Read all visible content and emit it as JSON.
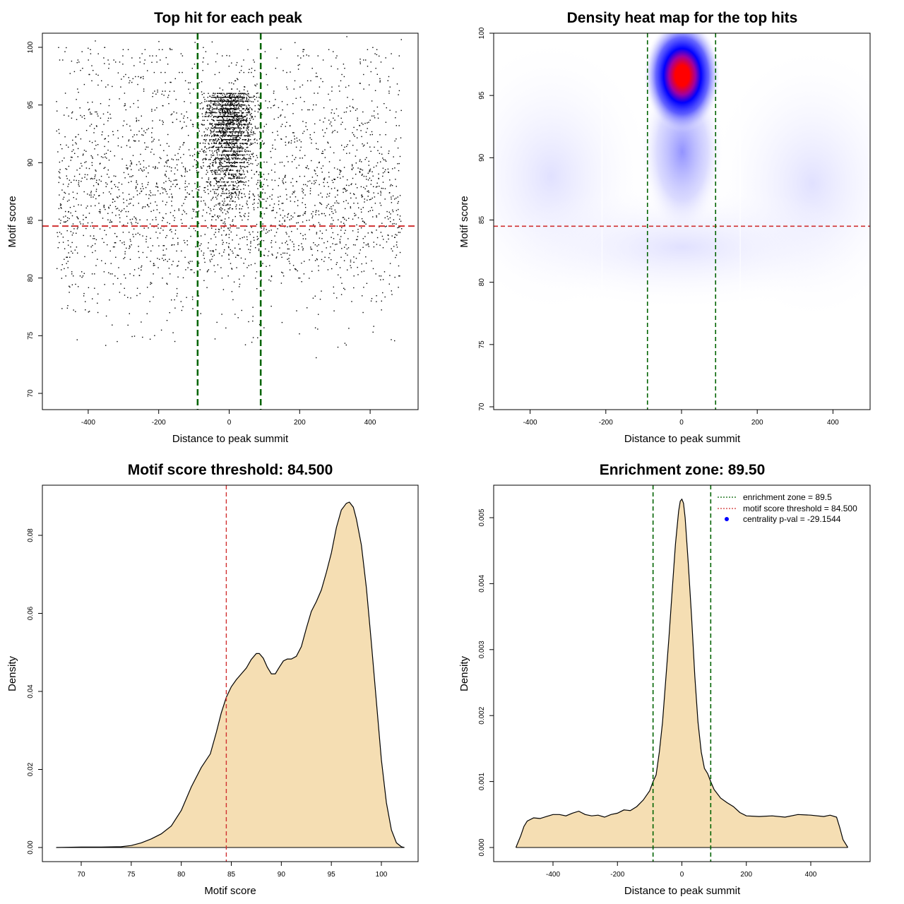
{
  "chart_data": [
    {
      "type": "scatter",
      "title": "Top hit for each peak",
      "xlabel": "Distance to peak summit",
      "ylabel": "Motif score",
      "xlim": [
        -500,
        500
      ],
      "ylim": [
        69,
        101
      ],
      "xticks": [
        "-400",
        "-200",
        "0",
        "200",
        "400"
      ],
      "yticks": [
        "70",
        "75",
        "80",
        "85",
        "90",
        "95",
        "100"
      ],
      "points_summary": "about 6000 points; dense near distance 0 and motif scores 88-100; sparse background from -500 to 500",
      "vlines": [
        -89.5,
        89.5
      ],
      "hline": 84.5,
      "colors": {
        "points": "#000000",
        "vlines": "#006400",
        "hline": "#d03030"
      }
    },
    {
      "type": "heatmap",
      "title": "Density heat map for the top hits",
      "xlabel": "Distance to peak summit",
      "ylabel": "Motif score",
      "xlim": [
        -500,
        500
      ],
      "ylim": [
        70,
        100
      ],
      "xticks": [
        "-400",
        "-200",
        "0",
        "200",
        "400"
      ],
      "yticks": [
        "70",
        "75",
        "80",
        "85",
        "90",
        "95",
        "100"
      ],
      "peak": {
        "x": 0,
        "y": 97
      },
      "vlines": [
        -90,
        90
      ],
      "hline": 84.5,
      "colors": {
        "low": "#ffffff",
        "mid": "#0000ff",
        "high": "#ff0000",
        "vlines": "#006400",
        "hline": "#d03030"
      }
    },
    {
      "type": "area",
      "title": "Motif score threshold: 84.500",
      "xlabel": "Motif score",
      "ylabel": "Density",
      "xlim": [
        66,
        103
      ],
      "ylim": [
        -0.003,
        0.0925
      ],
      "xticks": [
        "70",
        "75",
        "80",
        "85",
        "90",
        "95",
        "100"
      ],
      "yticks": [
        "0.00",
        "0.02",
        "0.04",
        "0.06",
        "0.08"
      ],
      "x": [
        67.5,
        70,
        72,
        74,
        75,
        76,
        77,
        78,
        79,
        80,
        81,
        82,
        82.9,
        83.5,
        84,
        84.5,
        85,
        85.5,
        86,
        86.5,
        87,
        87.5,
        87.8,
        88.2,
        88.6,
        89,
        89.4,
        89.8,
        90.2,
        90.6,
        91,
        91.5,
        92,
        92.5,
        93,
        93.5,
        94,
        94.5,
        95,
        95.5,
        96,
        96.5,
        96.8,
        97.2,
        97.5,
        98,
        98.5,
        99,
        99.5,
        100,
        100.5,
        101,
        101.5,
        102,
        102.3
      ],
      "values": [
        0.0,
        0.0001,
        0.0001,
        0.0002,
        0.0005,
        0.0012,
        0.0022,
        0.0035,
        0.0055,
        0.0095,
        0.0155,
        0.0205,
        0.024,
        0.0295,
        0.0345,
        0.0385,
        0.0412,
        0.043,
        0.0445,
        0.046,
        0.0482,
        0.0497,
        0.0497,
        0.0485,
        0.0462,
        0.0445,
        0.0445,
        0.0462,
        0.0478,
        0.0483,
        0.0483,
        0.049,
        0.0515,
        0.0562,
        0.0605,
        0.063,
        0.066,
        0.0705,
        0.0755,
        0.082,
        0.0865,
        0.0882,
        0.0885,
        0.0872,
        0.0842,
        0.0775,
        0.0665,
        0.0525,
        0.0375,
        0.0225,
        0.0115,
        0.0045,
        0.0012,
        0.0002,
        0.0
      ],
      "vline": 84.5,
      "colors": {
        "fill": "#f5deb3",
        "line": "#000000",
        "vline": "#d03030"
      }
    },
    {
      "type": "area",
      "title": "Enrichment zone: 89.50",
      "xlabel": "Distance to peak summit",
      "ylabel": "Density",
      "xlim": [
        -545,
        545
      ],
      "ylim": [
        -0.00021,
        0.00546
      ],
      "xticks": [
        "-400",
        "-200",
        "0",
        "200",
        "400"
      ],
      "yticks": [
        "0.000",
        "0.001",
        "0.002",
        "0.003",
        "0.004",
        "0.005"
      ],
      "x": [
        -515,
        -500,
        -490,
        -480,
        -460,
        -440,
        -420,
        -400,
        -380,
        -360,
        -340,
        -320,
        -300,
        -280,
        -260,
        -240,
        -220,
        -200,
        -180,
        -160,
        -140,
        -120,
        -100,
        -89.5,
        -80,
        -70,
        -60,
        -50,
        -40,
        -30,
        -20,
        -10,
        -5,
        0,
        5,
        10,
        20,
        30,
        40,
        50,
        60,
        70,
        80,
        89.5,
        100,
        120,
        140,
        160,
        180,
        200,
        240,
        280,
        320,
        360,
        400,
        440,
        460,
        480,
        490,
        500,
        515
      ],
      "values": [
        0.0,
        0.00018,
        0.00032,
        0.0004,
        0.00045,
        0.00044,
        0.00047,
        0.0005,
        0.0005,
        0.00048,
        0.00052,
        0.00055,
        0.0005,
        0.00048,
        0.00049,
        0.00046,
        0.0005,
        0.00052,
        0.00057,
        0.00056,
        0.00062,
        0.00072,
        0.00086,
        0.001,
        0.0011,
        0.00145,
        0.0019,
        0.00255,
        0.0032,
        0.0039,
        0.0046,
        0.0051,
        0.00525,
        0.00528,
        0.00522,
        0.005,
        0.0043,
        0.0035,
        0.0026,
        0.0019,
        0.00145,
        0.0012,
        0.00112,
        0.001,
        0.00088,
        0.00075,
        0.00068,
        0.00062,
        0.00053,
        0.00048,
        0.00047,
        0.00048,
        0.00046,
        0.0005,
        0.00049,
        0.00047,
        0.00049,
        0.00046,
        0.0003,
        0.00012,
        0.0
      ],
      "vlines": [
        -89.5,
        89.5
      ],
      "legend": {
        "position": "top-right",
        "entries": [
          "enrichment zone = 89.5",
          "motif score threshold = 84.500",
          "centrality p-val = -29.1544"
        ]
      },
      "colors": {
        "fill": "#f5deb3",
        "line": "#000000",
        "vlines": "#006400",
        "legend_green": "#006400",
        "legend_red": "#d03030",
        "legend_point": "#0000ff"
      }
    }
  ]
}
